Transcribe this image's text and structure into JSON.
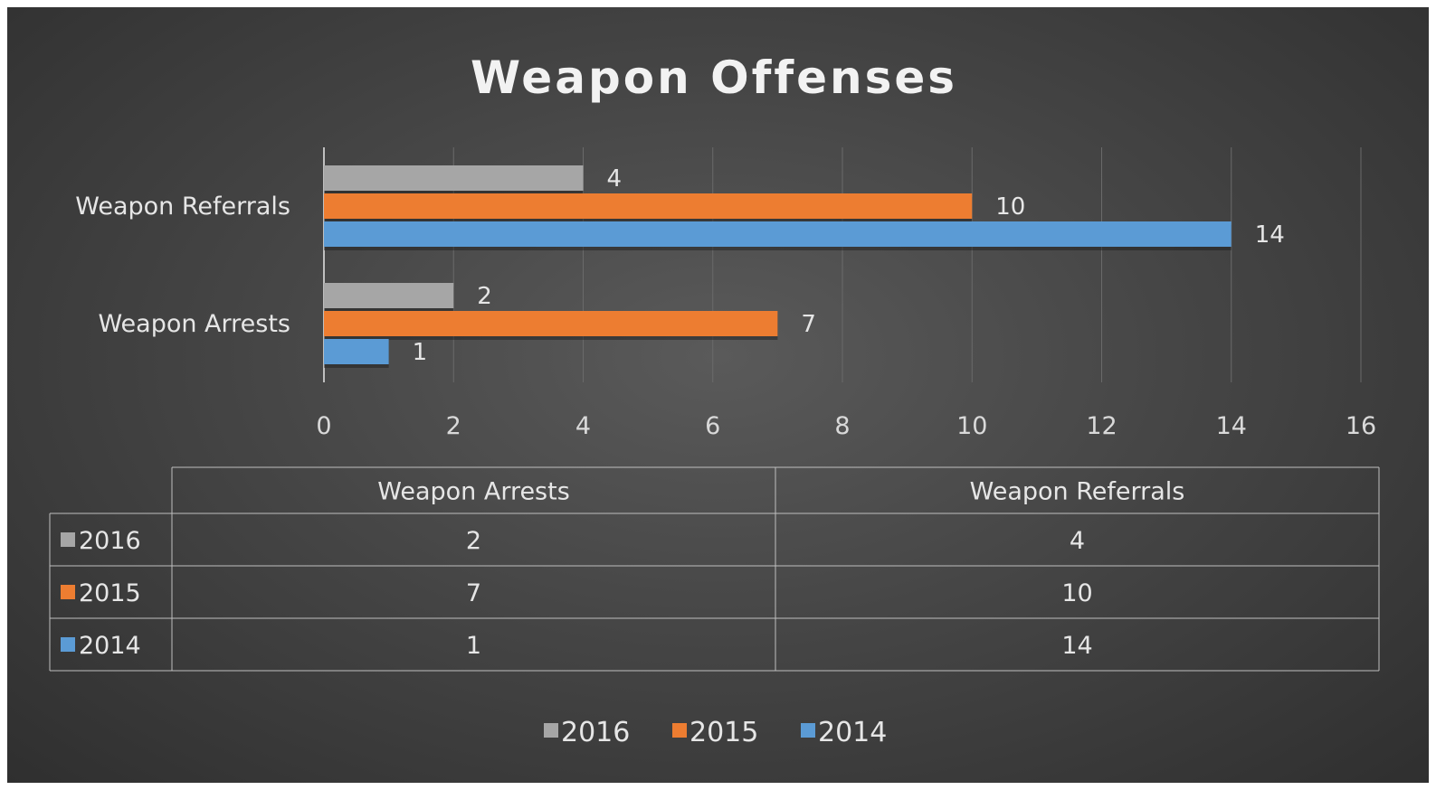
{
  "chart_data": {
    "type": "bar",
    "orientation": "horizontal",
    "title": "Weapon Offenses",
    "categories": [
      "Weapon Arrests",
      "Weapon Referrals"
    ],
    "series": [
      {
        "name": "2016",
        "values": [
          2,
          4
        ],
        "color": "#a6a6a6"
      },
      {
        "name": "2015",
        "values": [
          7,
          10
        ],
        "color": "#ed7d31"
      },
      {
        "name": "2014",
        "values": [
          1,
          14
        ],
        "color": "#5b9bd5"
      }
    ],
    "xlim": [
      0,
      16
    ],
    "xticks": [
      "0",
      "2",
      "4",
      "6",
      "8",
      "10",
      "12",
      "14",
      "16"
    ],
    "grid": true,
    "data_labels": true,
    "data_table": true,
    "legend_position": "bottom"
  }
}
